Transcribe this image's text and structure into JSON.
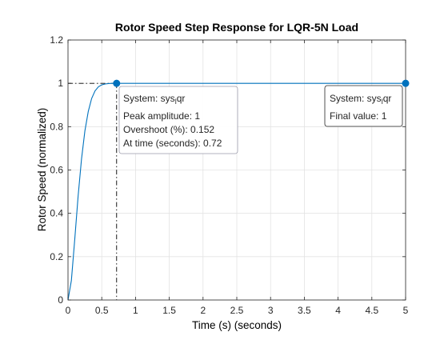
{
  "chart_data": {
    "type": "line",
    "title": "Rotor Speed Step Response for LQR-5N Load",
    "xlabel": "Time (s) (seconds)",
    "ylabel": "Rotor Speed (normalized)",
    "xlim": [
      0,
      5
    ],
    "ylim": [
      0,
      1.2
    ],
    "x_ticks": [
      "0",
      "0.5",
      "1",
      "1.5",
      "2",
      "2.5",
      "3",
      "3.5",
      "4",
      "4.5",
      "5"
    ],
    "y_ticks": [
      "0",
      "0.2",
      "0.4",
      "0.6",
      "0.8",
      "1",
      "1.2"
    ],
    "grid": true,
    "series": [
      {
        "color": "#0072bd",
        "x": [
          0,
          0.05,
          0.1,
          0.15,
          0.2,
          0.25,
          0.3,
          0.35,
          0.4,
          0.45,
          0.5,
          0.55,
          0.6,
          0.65,
          0.72,
          0.8,
          1.0,
          1.5,
          2.0,
          2.5,
          3.0,
          3.5,
          4.0,
          4.5,
          5.0
        ],
        "y": [
          0,
          0.09,
          0.28,
          0.48,
          0.65,
          0.78,
          0.87,
          0.93,
          0.965,
          0.984,
          0.993,
          0.997,
          0.999,
          1.0,
          1.0,
          1.0,
          1.0,
          1.0,
          1.0,
          1.0,
          1.0,
          1.0,
          1.0,
          1.0,
          1.0
        ]
      }
    ],
    "markers": [
      {
        "x": 0.72,
        "y": 1,
        "color": "#0072bd"
      },
      {
        "x": 5,
        "y": 1,
        "color": "#0072bd"
      }
    ],
    "reference_lines": {
      "peak_x": 0.72,
      "peak_y": 1
    },
    "annotations": {
      "peak": {
        "system_prefix": "System: sys",
        "system_sub": "l",
        "system_suffix": "qr",
        "peak_amplitude": "Peak amplitude: 1",
        "overshoot": "Overshoot (%): 0.152",
        "at_time": "At time (seconds): 0.72"
      },
      "final": {
        "system_prefix": "System: sys",
        "system_sub": "l",
        "system_suffix": "qr",
        "final_value": "Final value: 1"
      }
    }
  }
}
